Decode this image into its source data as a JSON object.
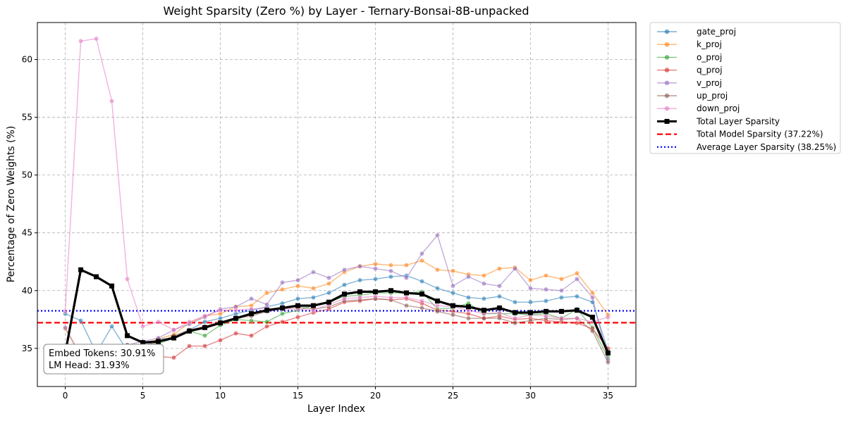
{
  "chart_data": {
    "type": "line",
    "title": "Weight Sparsity (Zero %) by Layer - Ternary-Bonsai-8B-unpacked",
    "xlabel": "Layer Index",
    "ylabel": "Percentage of Zero Weights (%)",
    "xlim": [
      -1.8,
      36.8
    ],
    "ylim": [
      31.7,
      63.2
    ],
    "x_ticks": [
      0,
      5,
      10,
      15,
      20,
      25,
      30,
      35
    ],
    "y_ticks": [
      35,
      40,
      45,
      50,
      55,
      60
    ],
    "grid": true,
    "legend_position": "outside-right-top",
    "x": [
      0,
      1,
      2,
      3,
      4,
      5,
      6,
      7,
      8,
      9,
      10,
      11,
      12,
      13,
      14,
      15,
      16,
      17,
      18,
      19,
      20,
      21,
      22,
      23,
      24,
      25,
      26,
      27,
      28,
      29,
      30,
      31,
      32,
      33,
      34,
      35
    ],
    "series": [
      {
        "name": "gate_proj",
        "color": "#1f77b4",
        "values": [
          38.0,
          37.4,
          34.6,
          36.9,
          34.8,
          35.0,
          35.8,
          35.9,
          36.6,
          37.3,
          37.6,
          38.0,
          38.3,
          38.6,
          38.9,
          39.3,
          39.4,
          39.8,
          40.5,
          40.9,
          41.0,
          41.2,
          41.3,
          40.8,
          40.2,
          39.8,
          39.4,
          39.3,
          39.5,
          39.0,
          39.0,
          39.1,
          39.4,
          39.5,
          39.0,
          34.8
        ]
      },
      {
        "name": "k_proj",
        "color": "#ff7f0e",
        "values": [
          36.7,
          34.3,
          34.4,
          35.2,
          35.0,
          35.4,
          35.8,
          36.2,
          37.2,
          37.8,
          38.0,
          38.6,
          38.7,
          39.8,
          40.1,
          40.4,
          40.2,
          40.6,
          41.6,
          42.1,
          42.3,
          42.2,
          42.2,
          42.6,
          41.8,
          41.7,
          41.4,
          41.3,
          41.9,
          42.0,
          40.9,
          41.3,
          41.0,
          41.5,
          39.8,
          37.9
        ]
      },
      {
        "name": "o_proj",
        "color": "#2ca02c",
        "values": [
          34.6,
          34.4,
          34.3,
          34.9,
          35.2,
          35.3,
          35.4,
          35.9,
          36.5,
          36.1,
          37.0,
          37.5,
          37.4,
          37.3,
          38.0,
          38.3,
          38.7,
          39.0,
          39.5,
          39.6,
          39.8,
          39.8,
          39.8,
          39.9,
          38.4,
          38.5,
          38.9,
          38.0,
          38.0,
          38.0,
          37.9,
          38.0,
          37.6,
          38.4,
          36.8,
          34.2
        ]
      },
      {
        "name": "q_proj",
        "color": "#d62728",
        "values": [
          33.9,
          33.6,
          33.5,
          33.7,
          34.0,
          34.1,
          34.3,
          34.2,
          35.2,
          35.2,
          35.7,
          36.3,
          36.1,
          36.9,
          37.3,
          37.7,
          38.1,
          38.4,
          39.0,
          39.1,
          39.3,
          39.2,
          39.3,
          38.9,
          38.3,
          38.2,
          38.0,
          37.6,
          37.8,
          37.5,
          37.6,
          37.4,
          37.3,
          37.2,
          36.7,
          35.0
        ]
      },
      {
        "name": "v_proj",
        "color": "#9467bd",
        "values": [
          36.8,
          34.4,
          34.6,
          35.0,
          35.3,
          35.6,
          35.9,
          36.6,
          37.1,
          37.7,
          38.4,
          38.6,
          39.3,
          38.8,
          40.7,
          40.9,
          41.6,
          41.1,
          41.8,
          42.1,
          41.9,
          41.7,
          41.1,
          43.2,
          44.8,
          40.4,
          41.2,
          40.6,
          40.4,
          41.9,
          40.2,
          40.1,
          40.0,
          41.0,
          39.4,
          34.0
        ]
      },
      {
        "name": "up_proj",
        "color": "#8c564b",
        "values": [
          34.9,
          34.5,
          34.3,
          34.6,
          35.3,
          35.3,
          35.5,
          36.1,
          36.6,
          36.9,
          37.3,
          37.6,
          37.8,
          38.2,
          38.4,
          38.6,
          38.4,
          38.6,
          39.1,
          39.2,
          39.3,
          39.2,
          38.7,
          38.5,
          38.2,
          37.9,
          37.6,
          37.6,
          37.6,
          37.2,
          37.4,
          37.6,
          37.5,
          37.6,
          36.5,
          33.8
        ]
      },
      {
        "name": "down_proj",
        "color": "#e377c2",
        "values": [
          38.2,
          61.6,
          61.8,
          56.4,
          41.0,
          36.9,
          37.3,
          36.6,
          37.3,
          37.8,
          38.3,
          38.3,
          38.4,
          38.5,
          38.4,
          38.4,
          38.3,
          38.8,
          39.3,
          39.4,
          39.5,
          39.4,
          39.4,
          39.1,
          38.7,
          38.6,
          38.3,
          38.0,
          38.1,
          37.6,
          37.9,
          37.8,
          37.6,
          37.6,
          37.3,
          37.7
        ]
      },
      {
        "name": "Total Layer Sparsity",
        "color": "#000000",
        "values": [
          34.6,
          41.8,
          41.2,
          40.4,
          36.1,
          35.5,
          35.6,
          35.9,
          36.5,
          36.8,
          37.2,
          37.6,
          38.0,
          38.3,
          38.5,
          38.7,
          38.7,
          39.0,
          39.7,
          39.9,
          39.9,
          40.0,
          39.8,
          39.7,
          39.1,
          38.7,
          38.6,
          38.3,
          38.5,
          38.1,
          38.1,
          38.2,
          38.2,
          38.3,
          37.7,
          34.6
        ]
      }
    ],
    "reference_lines": [
      {
        "name": "Total Model Sparsity (37.22%)",
        "y": 37.22,
        "color": "#ff0000",
        "style": "dashed"
      },
      {
        "name": "Average Layer Sparsity (38.25%)",
        "y": 38.25,
        "color": "#0000ff",
        "style": "dotted"
      }
    ],
    "annotation": {
      "line1": "Embed Tokens: 30.91%",
      "line2": "LM Head: 31.93%"
    }
  }
}
